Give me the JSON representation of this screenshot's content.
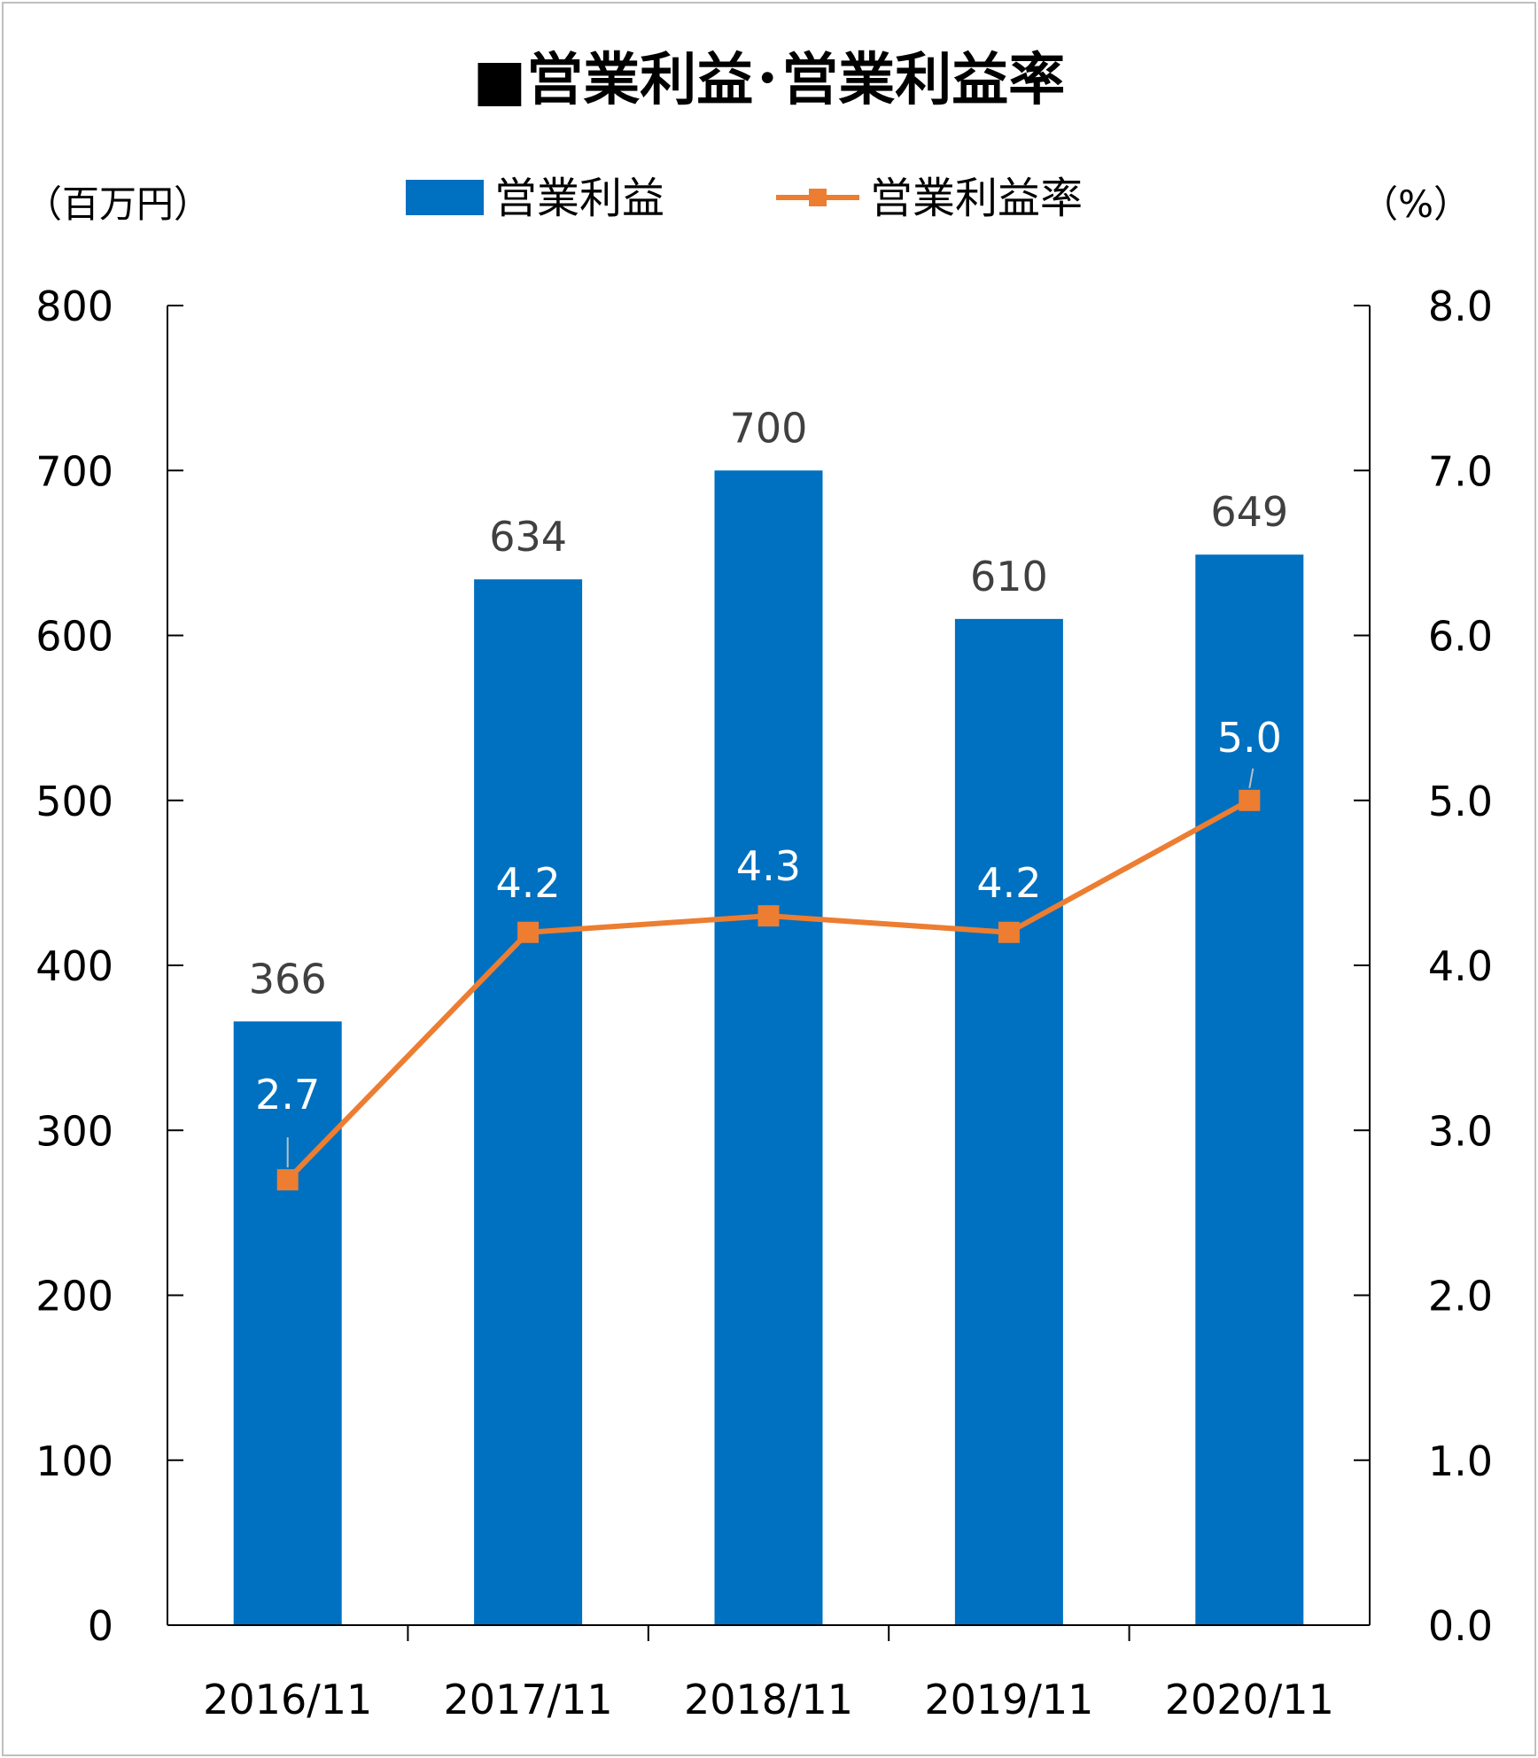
{
  "chart_data": {
    "type": "bar",
    "title": "■営業利益･営業利益率",
    "categories": [
      "2016/11",
      "2017/11",
      "2018/11",
      "2019/11",
      "2020/11"
    ],
    "series": [
      {
        "name": "営業利益",
        "type": "bar",
        "axis": "left",
        "color": "#0070c0",
        "values": [
          366,
          634,
          700,
          610,
          649
        ]
      },
      {
        "name": "営業利益率",
        "type": "line",
        "axis": "right",
        "color": "#ed7d31",
        "values": [
          2.7,
          4.2,
          4.3,
          4.2,
          5.0
        ]
      }
    ],
    "y_left": {
      "label": "（百万円）",
      "min": 0,
      "max": 800,
      "step": 100,
      "ticks": [
        "0",
        "100",
        "200",
        "300",
        "400",
        "500",
        "600",
        "700",
        "800"
      ]
    },
    "y_right": {
      "label": "（%）",
      "min": 0,
      "max": 8,
      "step": 1,
      "ticks": [
        "0.0",
        "1.0",
        "2.0",
        "3.0",
        "4.0",
        "5.0",
        "6.0",
        "7.0",
        "8.0"
      ]
    },
    "bar_labels": [
      "366",
      "634",
      "700",
      "610",
      "649"
    ],
    "line_labels": [
      "2.7",
      "4.2",
      "4.3",
      "4.2",
      "5.0"
    ],
    "legend_position": "top-center",
    "grid": false,
    "label_color": "#404040",
    "line_label_color": "#ffffff"
  }
}
